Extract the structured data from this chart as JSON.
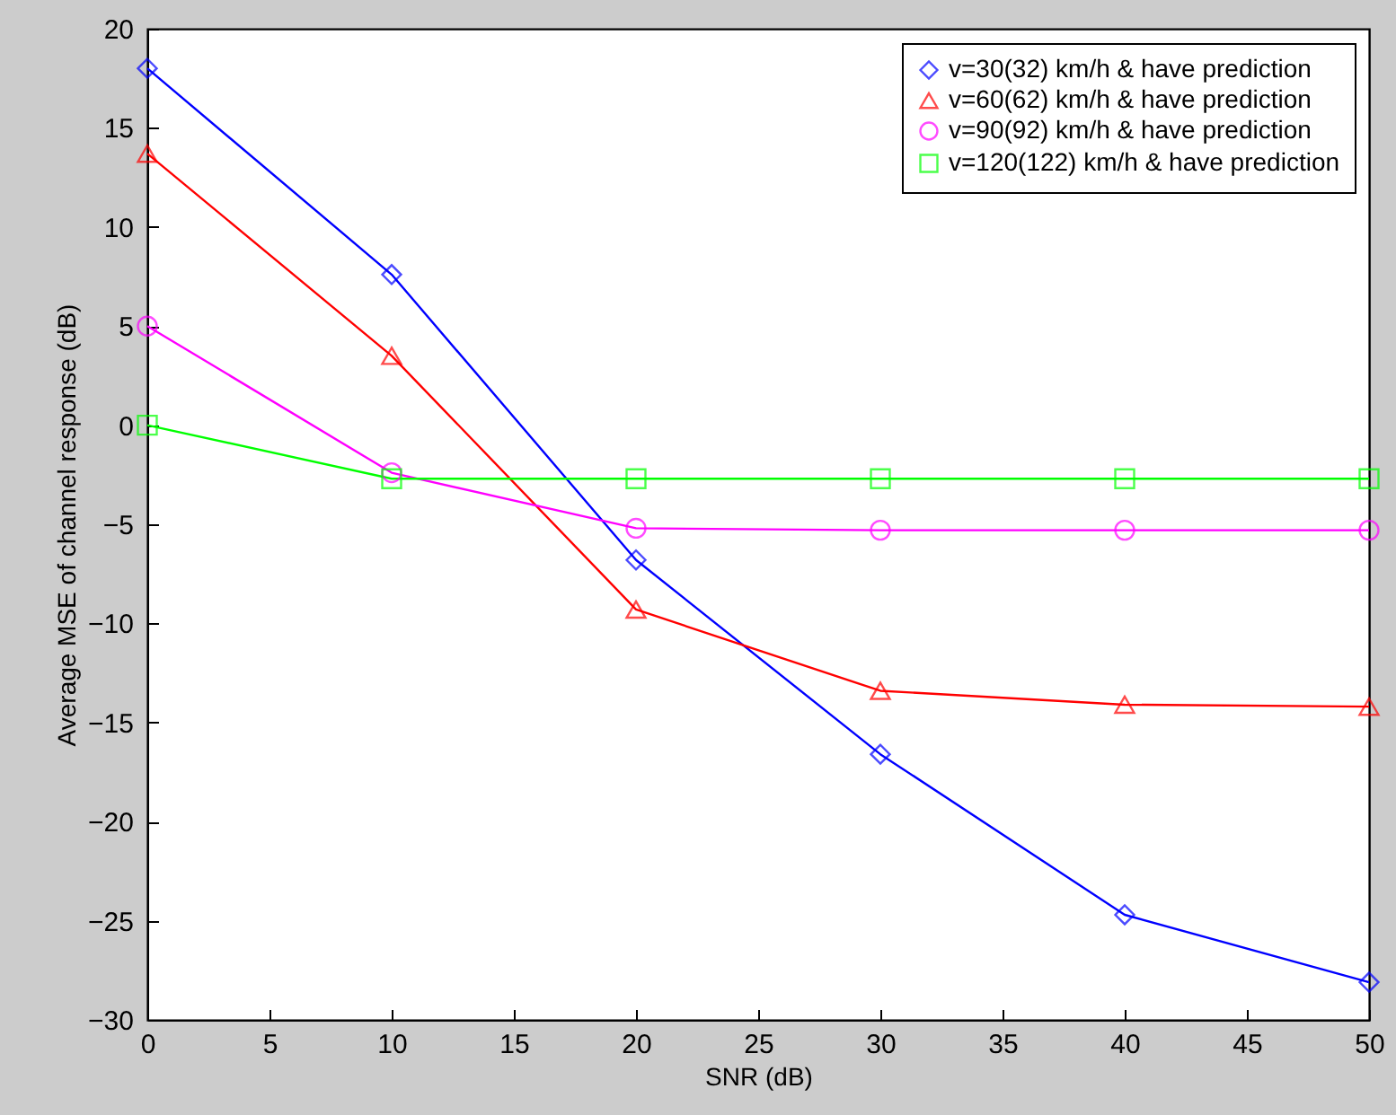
{
  "chart_data": {
    "type": "line",
    "xlabel": "SNR (dB)",
    "ylabel": "Average MSE of channel response (dB)",
    "x": [
      0,
      10,
      20,
      30,
      40,
      50
    ],
    "series": [
      {
        "name": "v=30(32) km/h & have prediction",
        "color": "#0000ff",
        "marker": "diamond",
        "values": [
          18,
          7.6,
          -6.8,
          -16.6,
          -24.7,
          -28.1
        ]
      },
      {
        "name": "v=60(62) km/h & have prediction",
        "color": "#ff0000",
        "marker": "triangle",
        "values": [
          13.7,
          3.5,
          -9.3,
          -13.4,
          -14.1,
          -14.2
        ]
      },
      {
        "name": "v=90(92) km/h & have prediction",
        "color": "#ff00ff",
        "marker": "circle",
        "values": [
          5,
          -2.4,
          -5.2,
          -5.3,
          -5.3,
          -5.3
        ]
      },
      {
        "name": "v=120(122) km/h & have prediction",
        "color": "#00ff00",
        "marker": "square",
        "values": [
          0,
          -2.7,
          -2.7,
          -2.7,
          -2.7,
          -2.7
        ]
      }
    ],
    "xlim": [
      0,
      50
    ],
    "xticks": [
      0,
      5,
      10,
      15,
      20,
      25,
      30,
      35,
      40,
      45,
      50
    ],
    "ylim": [
      -30,
      20
    ],
    "yticks": [
      -30,
      -25,
      -20,
      -15,
      -10,
      -5,
      0,
      5,
      10,
      15,
      20
    ],
    "grid": false,
    "legend": "top right",
    "line_style": "solid"
  }
}
